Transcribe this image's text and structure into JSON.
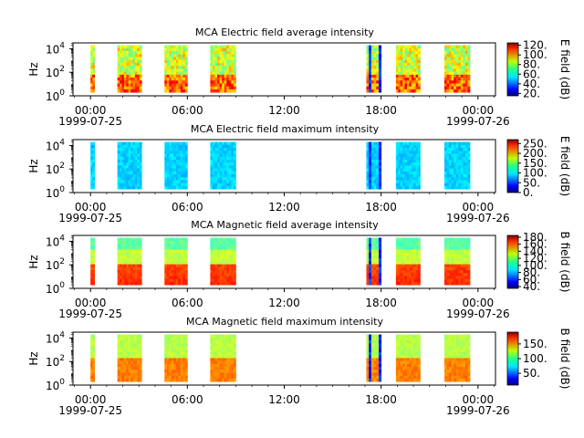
{
  "chart_data": [
    {
      "type": "heatmap",
      "title": "MCA  Electric field average intensity",
      "ylabel": "Hz",
      "y_scale": "log",
      "y_tick_labels": [
        {
          "base": "10",
          "exp": "0"
        },
        {
          "base": "10",
          "exp": "2"
        },
        {
          "base": "10",
          "exp": "4"
        }
      ],
      "x_tick_labels": [
        "00:00",
        "06:00",
        "12:00",
        "18:00",
        "00:00"
      ],
      "x_date_start": "1999-07-25",
      "x_date_end": "1999-07-26",
      "colorbar_label": "E field (dB)",
      "colorbar_range": [
        15,
        125
      ],
      "colorbar_ticks": [
        "20.",
        "40.",
        "60.",
        "80.",
        "100.",
        "120."
      ],
      "data_segments_utc": [
        [
          "00:00",
          "00:15"
        ],
        [
          "01:40",
          "03:10"
        ],
        [
          "04:35",
          "06:00"
        ],
        [
          "07:25",
          "09:00"
        ],
        [
          "17:05",
          "18:00"
        ],
        [
          "18:55",
          "20:25"
        ],
        [
          "21:55",
          "23:30"
        ]
      ],
      "typical_level_db": 75
    },
    {
      "type": "heatmap",
      "title": "MCA  Electric field maximum intensity",
      "ylabel": "Hz",
      "y_scale": "log",
      "y_tick_labels": [
        {
          "base": "10",
          "exp": "0"
        },
        {
          "base": "10",
          "exp": "2"
        },
        {
          "base": "10",
          "exp": "4"
        }
      ],
      "x_tick_labels": [
        "00:00",
        "06:00",
        "12:00",
        "18:00",
        "00:00"
      ],
      "x_date_start": "1999-07-25",
      "x_date_end": "1999-07-26",
      "colorbar_label": "E field (dB)",
      "colorbar_range": [
        0,
        270
      ],
      "colorbar_ticks": [
        "0.",
        "50.",
        "100.",
        "150.",
        "200.",
        "250."
      ],
      "data_segments_utc": [
        [
          "00:00",
          "00:15"
        ],
        [
          "01:40",
          "03:10"
        ],
        [
          "04:35",
          "06:00"
        ],
        [
          "07:25",
          "09:00"
        ],
        [
          "17:05",
          "18:00"
        ],
        [
          "18:55",
          "20:25"
        ],
        [
          "21:55",
          "23:30"
        ]
      ],
      "typical_level_db": 100
    },
    {
      "type": "heatmap",
      "title": "MCA  Magnetic field average intensity",
      "ylabel": "Hz",
      "y_scale": "log",
      "y_tick_labels": [
        {
          "base": "10",
          "exp": "0"
        },
        {
          "base": "10",
          "exp": "2"
        },
        {
          "base": "10",
          "exp": "4"
        }
      ],
      "x_tick_labels": [
        "00:00",
        "06:00",
        "12:00",
        "18:00",
        "00:00"
      ],
      "x_date_start": "1999-07-25",
      "x_date_end": "1999-07-26",
      "colorbar_label": "B field (dB)",
      "colorbar_range": [
        35,
        185
      ],
      "colorbar_ticks": [
        "40.",
        "60.",
        "80.",
        "100.",
        "120.",
        "140.",
        "160.",
        "180."
      ],
      "data_segments_utc": [
        [
          "00:00",
          "00:15"
        ],
        [
          "01:40",
          "03:10"
        ],
        [
          "04:35",
          "06:00"
        ],
        [
          "07:25",
          "09:00"
        ],
        [
          "17:05",
          "18:00"
        ],
        [
          "18:55",
          "20:25"
        ],
        [
          "21:55",
          "23:30"
        ]
      ],
      "typical_level_db": 120
    },
    {
      "type": "heatmap",
      "title": "MCA  Magnetic field maximum intensity",
      "ylabel": "Hz",
      "y_scale": "log",
      "y_tick_labels": [
        {
          "base": "10",
          "exp": "0"
        },
        {
          "base": "10",
          "exp": "2"
        },
        {
          "base": "10",
          "exp": "4"
        }
      ],
      "x_tick_labels": [
        "00:00",
        "06:00",
        "12:00",
        "18:00",
        "00:00"
      ],
      "x_date_start": "1999-07-25",
      "x_date_end": "1999-07-26",
      "colorbar_label": "B field (dB)",
      "colorbar_range": [
        10,
        190
      ],
      "colorbar_ticks": [
        "50.",
        "100.",
        "150."
      ],
      "data_segments_utc": [
        [
          "00:00",
          "00:15"
        ],
        [
          "01:40",
          "03:10"
        ],
        [
          "04:35",
          "06:00"
        ],
        [
          "07:25",
          "09:00"
        ],
        [
          "17:05",
          "18:00"
        ],
        [
          "18:55",
          "20:25"
        ],
        [
          "21:55",
          "23:30"
        ]
      ],
      "typical_level_db": 110
    }
  ]
}
